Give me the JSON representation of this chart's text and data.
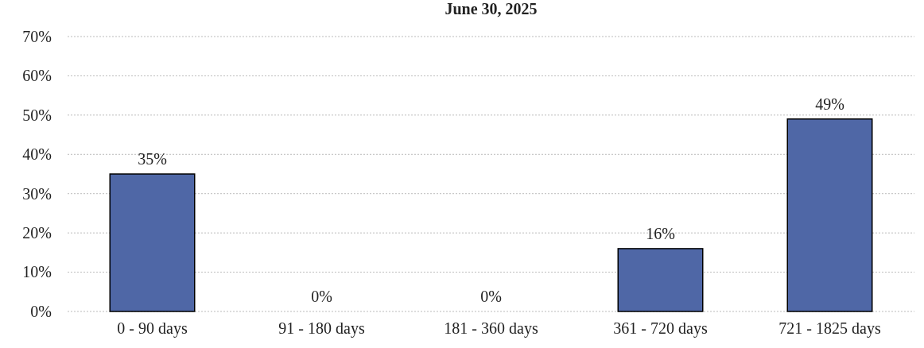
{
  "chart_data": {
    "type": "bar",
    "title": "June 30, 2025",
    "categories": [
      "0 - 90 days",
      "91 - 180 days",
      "181 - 360 days",
      "361 - 720 days",
      "721 - 1825 days"
    ],
    "values": [
      35,
      0,
      0,
      16,
      49
    ],
    "value_labels": [
      "35%",
      "0%",
      "0%",
      "16%",
      "49%"
    ],
    "color": "#4f67a6",
    "grid": "y",
    "ylim": [
      0,
      70
    ],
    "yticks": [
      {
        "value": 0,
        "label": "0%"
      },
      {
        "value": 10,
        "label": "10%"
      },
      {
        "value": 20,
        "label": "20%"
      },
      {
        "value": 30,
        "label": "30%"
      },
      {
        "value": 40,
        "label": "40%"
      },
      {
        "value": 50,
        "label": "50%"
      },
      {
        "value": 60,
        "label": "60%"
      },
      {
        "value": 70,
        "label": "70%"
      }
    ]
  }
}
